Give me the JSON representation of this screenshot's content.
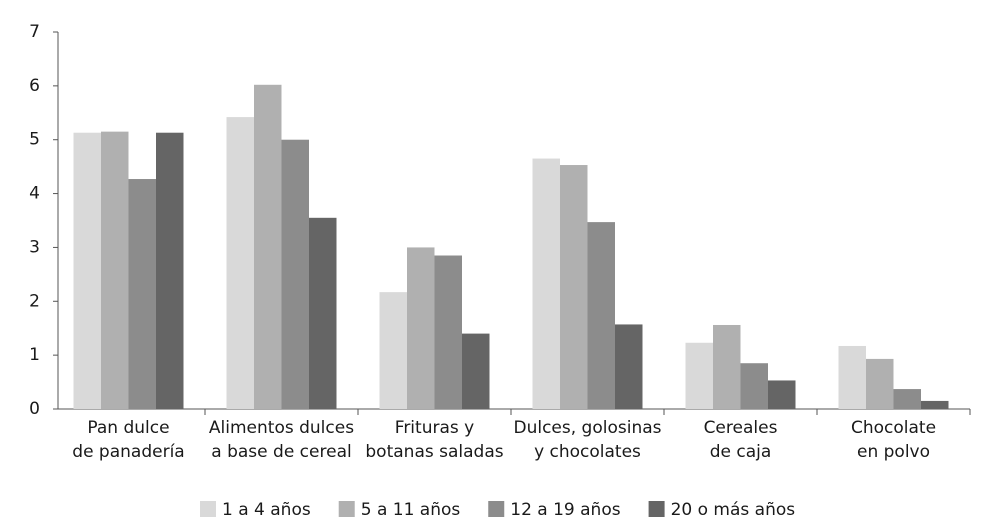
{
  "chart_data": {
    "type": "bar",
    "categories": [
      [
        "Pan dulce",
        "de panadería"
      ],
      [
        "Alimentos dulces",
        "a base de cereal"
      ],
      [
        "Frituras y",
        "botanas saladas"
      ],
      [
        "Dulces, golosinas",
        "y chocolates"
      ],
      [
        "Cereales",
        "de caja"
      ],
      [
        "Chocolate",
        "en polvo"
      ]
    ],
    "series": [
      {
        "name": "1 a 4 años",
        "color": "#d9d9d9",
        "values": [
          5.13,
          5.42,
          2.17,
          4.65,
          1.23,
          1.17
        ]
      },
      {
        "name": "5 a 11 años",
        "color": "#b0b0b0",
        "values": [
          5.15,
          6.02,
          3.0,
          4.53,
          1.56,
          0.93
        ]
      },
      {
        "name": "12 a 19 años",
        "color": "#8c8c8c",
        "values": [
          4.27,
          5.0,
          2.85,
          3.47,
          0.85,
          0.37
        ]
      },
      {
        "name": "20 o más años",
        "color": "#656565",
        "values": [
          5.13,
          3.55,
          1.4,
          1.57,
          0.53,
          0.15
        ]
      }
    ],
    "ylim": [
      0,
      7
    ],
    "yticks": [
      0,
      1,
      2,
      3,
      4,
      5,
      6,
      7
    ],
    "grid": false
  }
}
